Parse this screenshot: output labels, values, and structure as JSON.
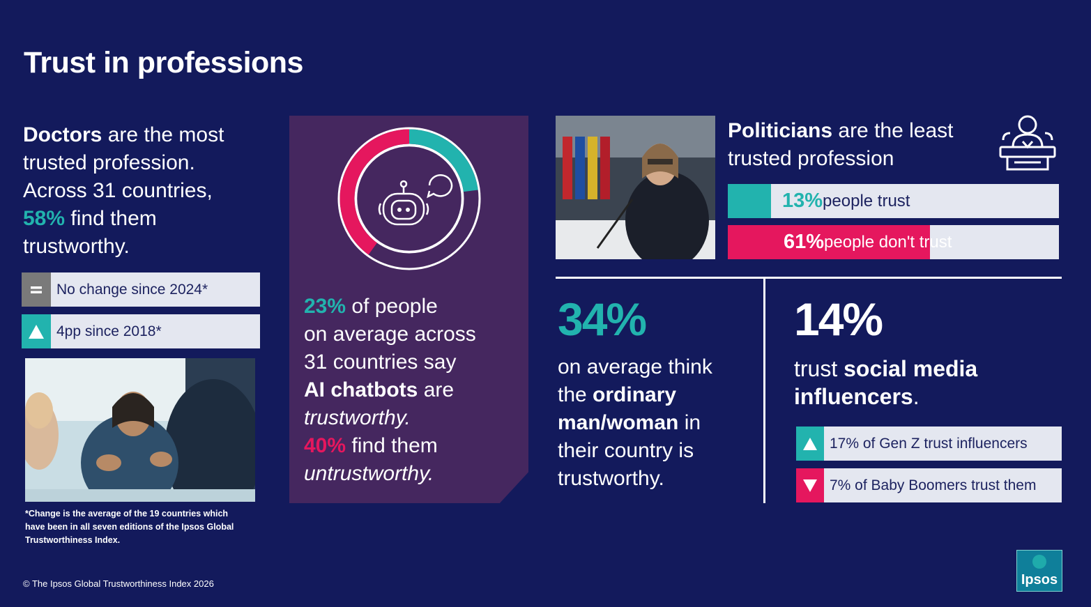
{
  "title": "Trust in professions",
  "doctors": {
    "l1a": "Doctors",
    "l1b": " are the most",
    "l2": "trusted profession.",
    "l3": "Across 31 countries,",
    "l4a": "58%",
    "l4b": " find them",
    "l5": "trustworthy.",
    "stat1": "No change since 2024*",
    "stat2": "4pp since 2018*",
    "footnote": "*Change is the average of the 19 countries which have been in all seven editions of the Ipsos Global Trustworthiness Index."
  },
  "ai": {
    "pct_trust": "23%",
    "t1": " of people",
    "t2": "on average across",
    "t3": "31 countries say",
    "t4a": "AI chatbots",
    "t4b": " are",
    "t5": "trustworthy.",
    "pct_untrust": "40%",
    "t6": " find them",
    "t7": "untrustworthy.",
    "donut": {
      "trust": 23,
      "untrust": 40
    }
  },
  "politicians": {
    "h1a": "Politicians",
    "h1b": " are the least",
    "h2": "trusted profession",
    "trust_pct": "13%",
    "trust_label": " people trust",
    "distrust_pct": "61%",
    "distrust_label": " people don't trust",
    "trust_value": 13,
    "distrust_value": 61
  },
  "ordinary": {
    "pct": "34%",
    "l1": "on average think",
    "l2a": "the ",
    "l2b": "ordinary",
    "l3a": "man/woman",
    "l3b": " in",
    "l4": "their country is",
    "l5": "trustworthy."
  },
  "influencers": {
    "pct": "14%",
    "l1a": "trust ",
    "l1b": "social media",
    "l2a": "influencers",
    "l2b": ".",
    "stat1": "17% of Gen Z trust influencers",
    "stat2": "7% of Baby Boomers trust them"
  },
  "copyright": "© The Ipsos Global Trustworthiness Index 2026",
  "logo": "Ipsos",
  "colors": {
    "background": "#131a5c",
    "teal": "#22b3ae",
    "pink": "#e5175e",
    "purple": "#45275f",
    "bar_bg": "#e4e7f0"
  }
}
